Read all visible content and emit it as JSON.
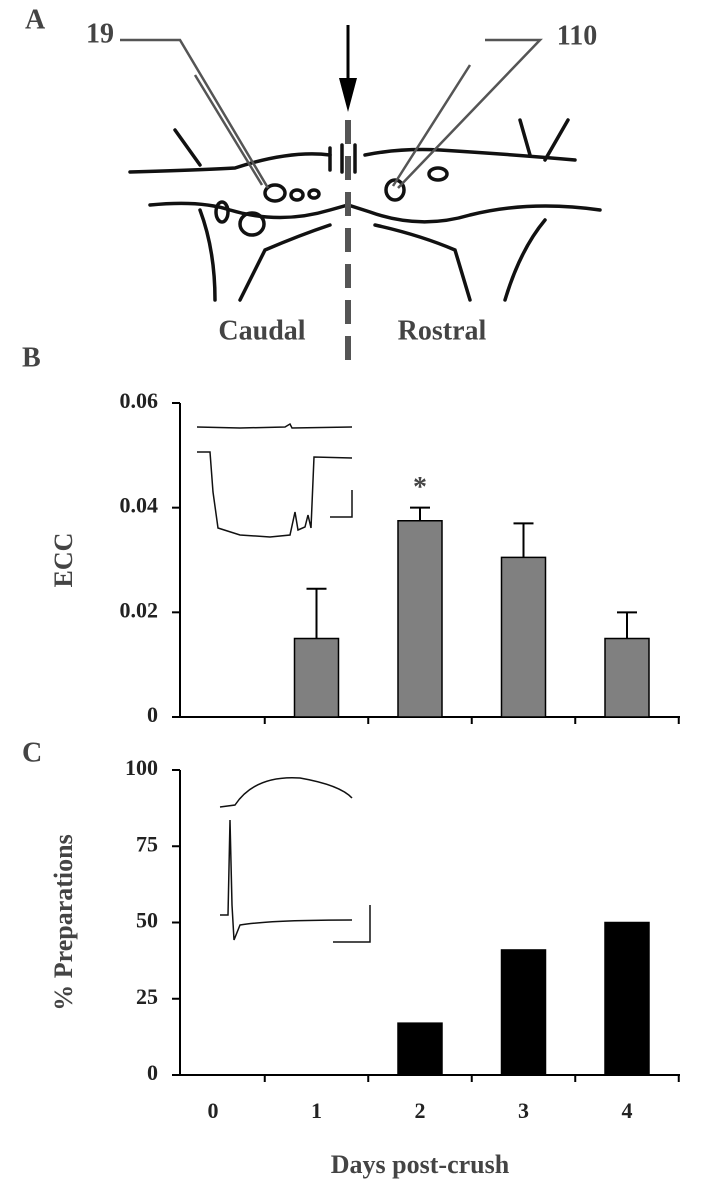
{
  "diagram": {
    "label": "A",
    "electrodes": [
      "19",
      "110"
    ],
    "regions": [
      "Caudal",
      "Rostral"
    ]
  },
  "chart_data": [
    {
      "type": "bar",
      "panel": "B",
      "ylabel": "ECC",
      "values": [
        null,
        0.015,
        0.0375,
        0.0305,
        0.015
      ],
      "errors": [
        null,
        0.0095,
        0.0025,
        0.0065,
        0.005
      ],
      "significance": [
        null,
        null,
        "*",
        null,
        null
      ],
      "color": "#808080",
      "ylim": [
        0,
        0.06
      ],
      "yticks": [
        0,
        0.02,
        0.04,
        0.06
      ]
    },
    {
      "type": "bar",
      "panel": "C",
      "ylabel": "% Preparations",
      "xlabel": "Days post-crush",
      "categories": [
        "0",
        "1",
        "2",
        "3",
        "4"
      ],
      "values": [
        0,
        0,
        17,
        41,
        50
      ],
      "color": "#000000",
      "ylim": [
        0,
        100
      ],
      "yticks": [
        0,
        25,
        50,
        75,
        100
      ]
    }
  ]
}
